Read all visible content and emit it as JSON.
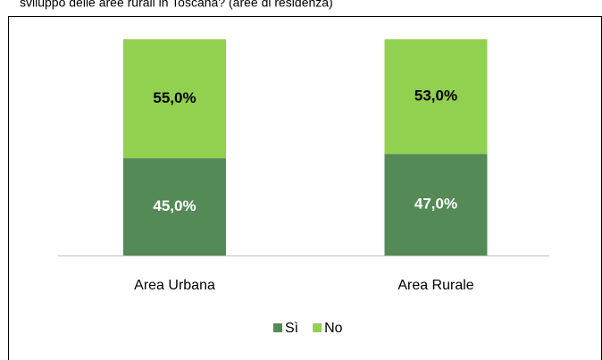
{
  "chart_data": {
    "type": "bar",
    "stacked": true,
    "title": "sviluppo delle aree rurali in Toscana? (aree di residenza)",
    "categories": [
      "Area Urbana",
      "Area Rurale"
    ],
    "series": [
      {
        "name": "Sì",
        "color": "#548a55",
        "values": [
          45,
          47
        ],
        "value_labels": [
          "45,0%",
          "47,0%"
        ]
      },
      {
        "name": "No",
        "color": "#92d050",
        "values": [
          55,
          53
        ],
        "value_labels": [
          "55,0%",
          "53,0%"
        ]
      }
    ],
    "legend": "bottom"
  }
}
